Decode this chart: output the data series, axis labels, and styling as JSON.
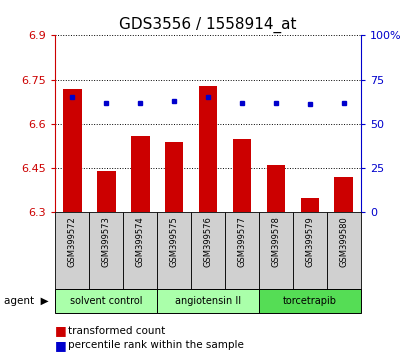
{
  "title": "GDS3556 / 1558914_at",
  "samples": [
    "GSM399572",
    "GSM399573",
    "GSM399574",
    "GSM399575",
    "GSM399576",
    "GSM399577",
    "GSM399578",
    "GSM399579",
    "GSM399580"
  ],
  "bar_values": [
    6.72,
    6.44,
    6.56,
    6.54,
    6.73,
    6.55,
    6.46,
    6.35,
    6.42
  ],
  "percentile_values": [
    65,
    62,
    62,
    63,
    65,
    62,
    62,
    61,
    62
  ],
  "y_min": 6.3,
  "y_max": 6.9,
  "y_ticks": [
    6.3,
    6.45,
    6.6,
    6.75,
    6.9
  ],
  "y_tick_labels": [
    "6.3",
    "6.45",
    "6.6",
    "6.75",
    "6.9"
  ],
  "y2_ticks": [
    0,
    25,
    50,
    75,
    100
  ],
  "y2_tick_labels": [
    "0",
    "25",
    "50",
    "75",
    "100%"
  ],
  "bar_color": "#cc0000",
  "dot_color": "#0000cc",
  "bar_width": 0.55,
  "agent_label": "agent",
  "legend_bar_label": "transformed count",
  "legend_dot_label": "percentile rank within the sample",
  "title_fontsize": 11,
  "tick_fontsize": 8,
  "label_fontsize": 7.5,
  "axis_color_left": "#cc0000",
  "axis_color_right": "#0000cc",
  "background_color": "#ffffff",
  "gsm_bg_color": "#d0d0d0",
  "group1_color": "#aaffaa",
  "group2_color": "#55dd55"
}
